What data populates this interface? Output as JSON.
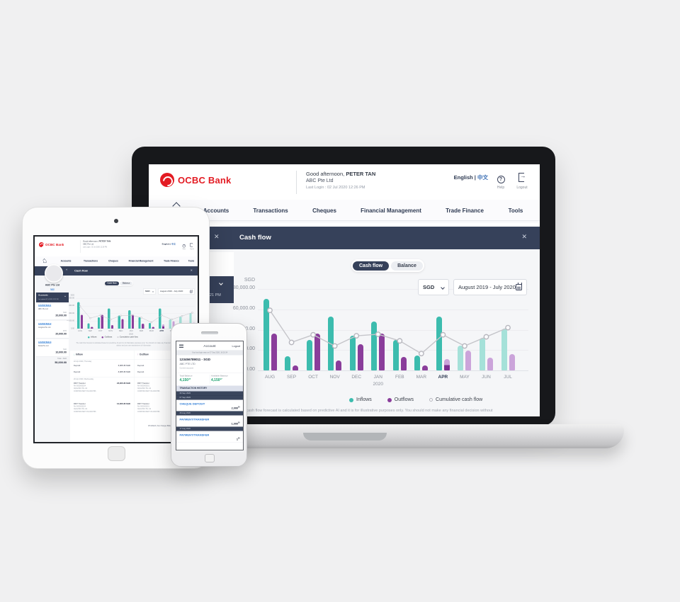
{
  "brand": {
    "name": "OCBC Bank",
    "red": "#e31b23",
    "navy": "#36415a"
  },
  "header": {
    "greeting": "Good afternoon,",
    "user": "PETER TAN",
    "company": "ABC Pte Ltd",
    "last_login": "Last Login : 02 Jul 2020 12:26 PM",
    "lang_en": "English |",
    "lang_zh": "中文",
    "help": "Help",
    "logout": "Logout"
  },
  "nav": {
    "items": [
      "Accounts",
      "Transactions",
      "Cheques",
      "Financial Management",
      "Trade Finance",
      "Tools"
    ]
  },
  "laptop": {
    "modal_title": "Cash flow",
    "close": "✕",
    "accounts_panel": {
      "title": "Accounts",
      "last_updated": "Last updated 02 Jul 2020 12:21 PM"
    },
    "toggle": {
      "cashflow": "Cash flow",
      "balance": "Balance"
    },
    "controls": {
      "currency": "SGD",
      "period": "August 2019 - July 2020"
    },
    "disclaimer": "The cash flow forecast is calculated based on predictive AI and it is for illustrative purposes only. You should not make any financial decision without"
  },
  "chart_data": {
    "type": "bar+line",
    "title": "Cash flow",
    "currency_label": "SGD",
    "categories": [
      "AUG",
      "SEP",
      "OCT",
      "NOV",
      "DEC",
      "JAN",
      "FEB",
      "MAR",
      "APR",
      "MAY",
      "JUN",
      "JUL"
    ],
    "year_sub_label": {
      "index": 5,
      "label": "2020"
    },
    "highlight_category": "APR",
    "forecast_from_index": 9,
    "partial_forecast_outflow_index": 8,
    "ylim": [
      0,
      80000
    ],
    "y_tick_labels": [
      "80,000.00",
      "60,000.00",
      "40,000.00",
      "20,000.00",
      "0.00"
    ],
    "grid": true,
    "legend_position": "bottom",
    "series": [
      {
        "name": "Inflows",
        "type": "bar",
        "color": "#3cbcae",
        "values": [
          70000,
          14000,
          30000,
          53000,
          34000,
          48000,
          30000,
          14500,
          53000,
          24500,
          32000,
          41000
        ]
      },
      {
        "name": "Outflows",
        "type": "bar",
        "color": "#8a3d9b",
        "values": [
          36000,
          5000,
          36000,
          9500,
          25500,
          36500,
          13000,
          5000,
          11000,
          19500,
          12500,
          16000
        ]
      },
      {
        "name": "Cumulative cash flow",
        "type": "line",
        "color": "#c5c5ca",
        "values": [
          59000,
          27500,
          35000,
          24000,
          34000,
          35500,
          29000,
          16500,
          35000,
          24000,
          33000,
          42000
        ]
      }
    ]
  },
  "tablet": {
    "modal_title": "Cash flow",
    "close": "✕",
    "collapse": "«",
    "sidebar": {
      "company": "ABC Pte Ltd",
      "edit": "Edit",
      "accounts_title": "Accounts",
      "accounts_sub": "Last updated 02 Jul 2020 12:21 PM",
      "accounts": [
        {
          "number": "123456789011",
          "name": "ABC Pte Ltd",
          "currency": "SGD",
          "balance": "20,000.00"
        },
        {
          "number": "123456789012",
          "name": "Insignia Pte Ltd",
          "currency": "MYR",
          "balance": "20,000.00"
        },
        {
          "number": "123456789013",
          "name": "Delta Pte Ltd",
          "currency": "SGD",
          "balance": "10,000.00"
        }
      ],
      "total_label": "Total - SGD",
      "total_value": "50,000.00"
    },
    "toggle": {
      "cashflow": "Cash flow",
      "balance": "Balance"
    },
    "controls": {
      "currency": "SGD",
      "period": "August 2019 - July 2020"
    },
    "disclaimer": "The cash flow forecast is calculated based on predictive AI and it is for illustrative purposes only. You should not make any financial decision without independent advice and your own assessment of information.",
    "table": {
      "inflow_arrow": "↓",
      "inflow_header": "Inflow",
      "outflow_arrow": "↑",
      "outflow_header": "Outflow",
      "date1": "22 Apr 2020, Thursday",
      "date2": "20 Apr 2020, Wednesday",
      "inflow_rows": [
        {
          "label": "Deposit",
          "amount": "3,005.36 SGD"
        },
        {
          "label": "Deposit",
          "amount": "3,005.36 SGD"
        }
      ],
      "outflow_rows": [
        {
          "label": "Deposit"
        },
        {
          "label": "Deposit"
        }
      ],
      "inflow_rmt": [
        {
          "label": "RMT Transfer",
          "ref": "Ref 0000000204",
          "name": "Alpha REV Pte Ltd",
          "detail": "CORPORATE/FT 09-CD03796",
          "amount": "23,005.36 SGD"
        },
        {
          "label": "RMT Transfer",
          "ref": "Ref 0000000204",
          "name": "Alpha REV Pte Ltd",
          "detail": "CORPORATE/FT 09-CD03796",
          "amount": "10,005.36 SGD"
        }
      ],
      "outflow_rmt": [
        {
          "label": "RMT Transfer",
          "ref": "Ref 0000000201",
          "name": "Alpha REV Pte Ltd",
          "detail": "CORPORATE/FT 09-CD03796"
        },
        {
          "label": "RMT Transfer",
          "ref": "Ref 0000000201",
          "name": "Alpha REV Pte Ltd",
          "detail": "CORPORATE/FT 09-CD03796"
        }
      ],
      "footer": "CHARGES | Svc Charges Billing | NBGR8106/MU/MJ07 | String"
    }
  },
  "phone": {
    "header": {
      "title": "Account",
      "logout": "Logout"
    },
    "last_login": "Your last login was on 07 Sep 2020, 16:20:34",
    "account": {
      "number": "123456789011 - SGD",
      "name": "ABC PTE LTD",
      "type": "Current account"
    },
    "balances": {
      "total_label": "Total Balance",
      "total_value": "4,150",
      "total_cents": "47",
      "available_label": "Available Balance",
      "available_value": "4,150",
      "available_cents": "47"
    },
    "history_title": "TRANSACTION HISTORY",
    "rows": [
      {
        "kind": "date",
        "text": "30 Sep 2020"
      },
      {
        "kind": "date",
        "text": "07 Sep 2020"
      },
      {
        "kind": "txn",
        "label": "CHEQUE DEPOSIT",
        "amount": "2,000",
        "cents": "00"
      },
      {
        "kind": "date",
        "text": "26 Aug 2020"
      },
      {
        "kind": "txn",
        "label": "PAYMENT/TRANSFER",
        "amount": "1,000",
        "cents": "00"
      },
      {
        "kind": "date",
        "text": "17 Aug 2020"
      },
      {
        "kind": "txn",
        "label": "PAYMENT/TRANSFER",
        "amount": "1",
        "cents": "00"
      }
    ]
  }
}
